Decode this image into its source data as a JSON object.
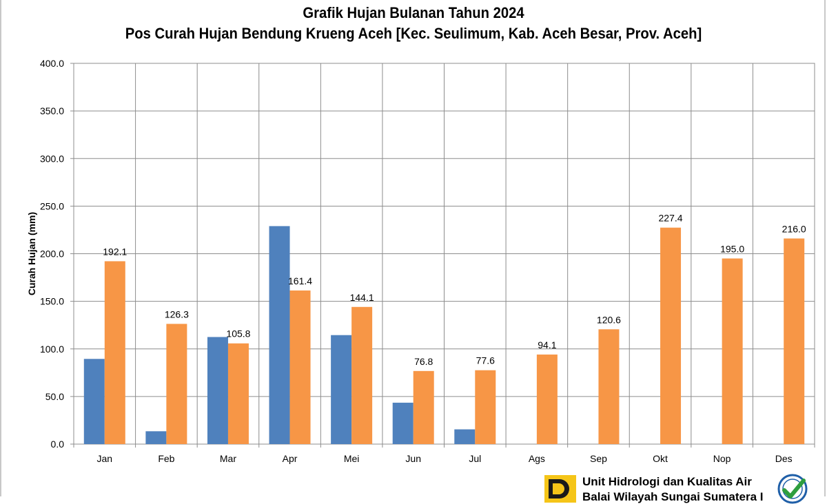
{
  "title_line1": "Grafik Hujan Bulanan Tahun 2024",
  "title_line2": "Pos Curah Hujan Bendung Krueng Aceh [Kec. Seulimum, Kab. Aceh Besar, Prov. Aceh]",
  "footer": {
    "org_line1": "Unit Hidrologi dan Kualitas Air",
    "org_line2": "Balai Wilayah Sungai Sumatera I",
    "logo_icon": "pu-logo-icon",
    "badge_icon": "iso-badge-icon"
  },
  "chart_data": {
    "type": "bar",
    "ylabel": "Curah Hujan (mm)",
    "ylim": [
      0,
      400
    ],
    "yticks": [
      "0.0",
      "50.0",
      "100.0",
      "150.0",
      "200.0",
      "250.0",
      "300.0",
      "350.0",
      "400.0"
    ],
    "grid": true,
    "categories": [
      "Jan",
      "Feb",
      "Mar",
      "Apr",
      "Mei",
      "Jun",
      "Jul",
      "Ags",
      "Sep",
      "Okt",
      "Nop",
      "Des"
    ],
    "series": [
      {
        "color": "#4f81bd",
        "values": [
          89.5,
          13.5,
          112.5,
          229.0,
          114.5,
          43.5,
          15.5,
          null,
          null,
          null,
          null,
          null
        ],
        "labeled": false
      },
      {
        "color": "#f79646",
        "values": [
          192.1,
          126.3,
          105.8,
          161.4,
          144.1,
          76.8,
          77.6,
          94.1,
          120.6,
          227.4,
          195.0,
          216.0
        ],
        "labels": [
          "192.1",
          "126.3",
          "105.8",
          "161.4",
          "144.1",
          "76.8",
          "77.6",
          "94.1",
          "120.6",
          "227.4",
          "195.0",
          "216.0"
        ],
        "labeled": true
      }
    ]
  }
}
